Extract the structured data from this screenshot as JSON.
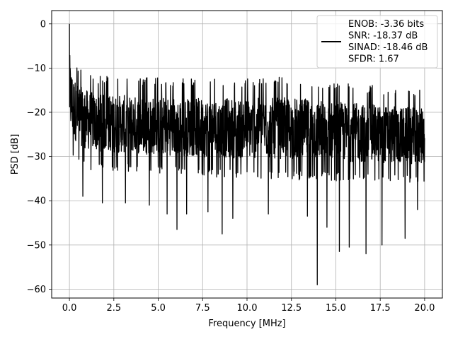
{
  "chart_data": {
    "type": "line",
    "title": "",
    "xlabel": "Frequency [MHz]",
    "ylabel": "PSD [dB]",
    "xlim": [
      -1.0,
      21.0
    ],
    "ylim": [
      -62.0,
      3.0
    ],
    "xticks": [
      0.0,
      2.5,
      5.0,
      7.5,
      10.0,
      12.5,
      15.0,
      17.5,
      20.0
    ],
    "xtick_labels": [
      "0.0",
      "2.5",
      "5.0",
      "7.5",
      "10.0",
      "12.5",
      "15.0",
      "17.5",
      "20.0"
    ],
    "yticks": [
      0,
      -10,
      -20,
      -30,
      -40,
      -50,
      -60
    ],
    "ytick_labels": [
      "0",
      "−10",
      "−20",
      "−30",
      "−40",
      "−50",
      "−60"
    ],
    "grid": true,
    "legend_position": "upper right",
    "legend_lines": [
      "ENOB: -3.36 bits",
      "SNR: -18.37 dB",
      "SINAD: -18.46 dB",
      "SFDR: 1.67"
    ],
    "series": [
      {
        "color": "#000000",
        "description": "Noisy PSD trace: peak ~0 dB at 0 MHz, noise mostly between about -35 and -12 dB, deep notches near 6.0 (-46.5), 8.6 (-47.5), 14.0 (-59), 15.2 (-51.5), 16.7 (-52), 18.9 (-48.5) MHz",
        "x_range": [
          0.0,
          20.0
        ],
        "upper_envelope": [
          [
            0.0,
            0.0
          ],
          [
            0.05,
            -3.0
          ],
          [
            0.2,
            -7.0
          ],
          [
            0.5,
            -9.5
          ],
          [
            1.5,
            -11.5
          ],
          [
            4.0,
            -12.0
          ],
          [
            8.0,
            -12.5
          ],
          [
            12.5,
            -12.0
          ],
          [
            16.0,
            -13.5
          ],
          [
            20.0,
            -15.0
          ]
        ],
        "lower_envelope": [
          [
            0.0,
            -30.0
          ],
          [
            1.0,
            -33.0
          ],
          [
            5.0,
            -34.0
          ],
          [
            10.0,
            -35.0
          ],
          [
            15.0,
            -35.5
          ],
          [
            20.0,
            -36.0
          ]
        ],
        "notches": [
          [
            0.75,
            -39.0
          ],
          [
            1.85,
            -40.5
          ],
          [
            3.15,
            -40.5
          ],
          [
            4.5,
            -41.0
          ],
          [
            5.5,
            -43.0
          ],
          [
            6.05,
            -46.5
          ],
          [
            6.6,
            -43.0
          ],
          [
            7.8,
            -42.5
          ],
          [
            8.6,
            -47.5
          ],
          [
            9.2,
            -44.0
          ],
          [
            11.2,
            -43.0
          ],
          [
            13.4,
            -43.5
          ],
          [
            13.95,
            -59.0
          ],
          [
            14.5,
            -46.0
          ],
          [
            15.2,
            -51.5
          ],
          [
            15.75,
            -50.5
          ],
          [
            16.7,
            -52.0
          ],
          [
            17.6,
            -50.0
          ],
          [
            18.9,
            -48.5
          ],
          [
            19.6,
            -42.0
          ]
        ]
      }
    ]
  }
}
